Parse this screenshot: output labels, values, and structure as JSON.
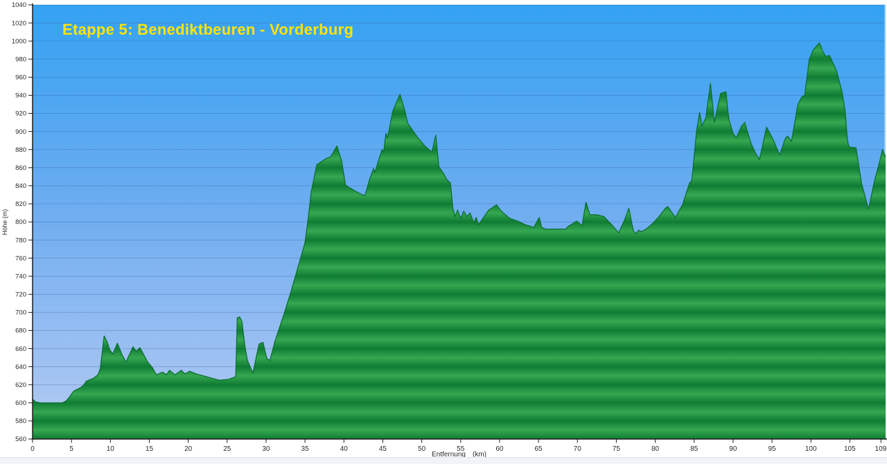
{
  "chart_data": {
    "type": "area",
    "title": "Etappe 5: Benediktbeuren - Vorderburg",
    "xlabel": "Entfernung",
    "xlabel_unit": "(km)",
    "ylabel": "Höhe (m)",
    "xlim": [
      0,
      109.6
    ],
    "ylim": [
      560,
      1040
    ],
    "grid": true,
    "x_ticks": [
      0,
      5,
      10,
      15,
      20,
      25,
      30,
      35,
      40,
      45,
      50,
      55,
      60,
      65,
      70,
      75,
      80,
      85,
      90,
      95,
      100,
      105,
      109
    ],
    "y_ticks": [
      560,
      580,
      600,
      620,
      640,
      660,
      680,
      700,
      720,
      740,
      760,
      780,
      800,
      820,
      840,
      860,
      880,
      900,
      920,
      940,
      960,
      980,
      1000,
      1020,
      1040
    ],
    "points": [
      [
        0,
        604
      ],
      [
        0.4,
        601
      ],
      [
        1,
        600
      ],
      [
        2,
        600
      ],
      [
        3,
        600
      ],
      [
        3.8,
        600
      ],
      [
        4.3,
        602
      ],
      [
        4.7,
        606
      ],
      [
        5.3,
        613
      ],
      [
        6.2,
        617
      ],
      [
        6.6,
        620
      ],
      [
        6.9,
        624
      ],
      [
        7.8,
        627
      ],
      [
        8.4,
        631
      ],
      [
        8.7,
        638
      ],
      [
        9.2,
        674
      ],
      [
        9.6,
        667
      ],
      [
        9.9,
        659
      ],
      [
        10.3,
        654
      ],
      [
        10.9,
        666
      ],
      [
        11.5,
        653
      ],
      [
        12,
        645
      ],
      [
        12.9,
        662
      ],
      [
        13.3,
        657
      ],
      [
        13.8,
        661
      ],
      [
        14.8,
        645
      ],
      [
        15.4,
        639
      ],
      [
        15.9,
        631
      ],
      [
        16.7,
        634
      ],
      [
        17.2,
        631
      ],
      [
        17.6,
        636
      ],
      [
        18.3,
        631
      ],
      [
        19.1,
        636
      ],
      [
        19.6,
        632
      ],
      [
        20.2,
        635
      ],
      [
        21,
        632
      ],
      [
        21.9,
        630
      ],
      [
        23.1,
        627
      ],
      [
        24,
        625
      ],
      [
        25.2,
        626
      ],
      [
        26.1,
        629
      ],
      [
        26.3,
        694
      ],
      [
        26.6,
        695
      ],
      [
        26.9,
        690
      ],
      [
        27.3,
        662
      ],
      [
        27.6,
        647
      ],
      [
        28.3,
        633
      ],
      [
        29.1,
        665
      ],
      [
        29.6,
        667
      ],
      [
        30.1,
        649
      ],
      [
        30.5,
        647
      ],
      [
        31.1,
        667
      ],
      [
        32.3,
        698
      ],
      [
        33.2,
        723
      ],
      [
        34.1,
        750
      ],
      [
        35,
        777
      ],
      [
        35.4,
        803
      ],
      [
        35.8,
        833
      ],
      [
        36.5,
        863
      ],
      [
        37,
        866
      ],
      [
        37.7,
        870
      ],
      [
        38.3,
        872
      ],
      [
        39.1,
        884
      ],
      [
        39.7,
        868
      ],
      [
        40.2,
        841
      ],
      [
        40.5,
        839
      ],
      [
        40.9,
        837
      ],
      [
        41.7,
        833
      ],
      [
        42.4,
        830
      ],
      [
        42.7,
        829
      ],
      [
        43.3,
        847
      ],
      [
        43.8,
        859
      ],
      [
        44,
        855
      ],
      [
        44.6,
        872
      ],
      [
        44.9,
        880
      ],
      [
        45.1,
        877
      ],
      [
        45.4,
        898
      ],
      [
        45.6,
        893
      ],
      [
        46.3,
        923
      ],
      [
        47.2,
        941
      ],
      [
        47.8,
        924
      ],
      [
        48.2,
        909
      ],
      [
        48.6,
        904
      ],
      [
        49.5,
        893
      ],
      [
        50.4,
        884
      ],
      [
        51.3,
        877
      ],
      [
        51.8,
        896
      ],
      [
        52.2,
        861
      ],
      [
        52.7,
        855
      ],
      [
        53.2,
        847
      ],
      [
        53.7,
        843
      ],
      [
        54,
        815
      ],
      [
        54.3,
        806
      ],
      [
        54.6,
        813
      ],
      [
        55,
        804
      ],
      [
        55.4,
        812
      ],
      [
        55.8,
        806
      ],
      [
        56.2,
        810
      ],
      [
        56.7,
        799
      ],
      [
        57,
        805
      ],
      [
        57.3,
        797
      ],
      [
        58.6,
        813
      ],
      [
        59.6,
        819
      ],
      [
        60.2,
        812
      ],
      [
        61.3,
        804
      ],
      [
        62.3,
        801
      ],
      [
        63.3,
        797
      ],
      [
        64.4,
        794
      ],
      [
        65.1,
        805
      ],
      [
        65.4,
        794
      ],
      [
        65.9,
        792
      ],
      [
        67.2,
        792
      ],
      [
        68.5,
        792
      ],
      [
        68.8,
        795
      ],
      [
        69.9,
        801
      ],
      [
        70.6,
        796
      ],
      [
        71.1,
        822
      ],
      [
        71.6,
        808
      ],
      [
        72.5,
        808
      ],
      [
        73.4,
        806
      ],
      [
        74.5,
        796
      ],
      [
        75.3,
        788
      ],
      [
        76.1,
        803
      ],
      [
        76.6,
        815
      ],
      [
        77.2,
        790
      ],
      [
        77.5,
        787
      ],
      [
        77.9,
        791
      ],
      [
        78.2,
        789
      ],
      [
        78.8,
        792
      ],
      [
        79.5,
        797
      ],
      [
        80.4,
        805
      ],
      [
        81.3,
        815
      ],
      [
        81.6,
        817
      ],
      [
        82.6,
        805
      ],
      [
        83.5,
        819
      ],
      [
        84.4,
        843
      ],
      [
        84.7,
        846
      ],
      [
        84.9,
        864
      ],
      [
        85.3,
        900
      ],
      [
        85.7,
        921
      ],
      [
        86,
        906
      ],
      [
        86.5,
        915
      ],
      [
        87.1,
        953
      ],
      [
        87.6,
        910
      ],
      [
        88.4,
        942
      ],
      [
        89.1,
        944
      ],
      [
        89.3,
        925
      ],
      [
        89.5,
        912
      ],
      [
        90,
        898
      ],
      [
        90.4,
        893
      ],
      [
        91.1,
        906
      ],
      [
        91.5,
        910
      ],
      [
        92.3,
        887
      ],
      [
        93,
        874
      ],
      [
        93.4,
        869
      ],
      [
        94.3,
        905
      ],
      [
        95.1,
        892
      ],
      [
        96,
        874
      ],
      [
        96.7,
        892
      ],
      [
        97,
        895
      ],
      [
        97.5,
        889
      ],
      [
        98.3,
        929
      ],
      [
        98.8,
        938
      ],
      [
        99.2,
        940
      ],
      [
        99.8,
        980
      ],
      [
        100.3,
        990
      ],
      [
        101.1,
        998
      ],
      [
        101.5,
        989
      ],
      [
        101.9,
        983
      ],
      [
        102.4,
        984
      ],
      [
        103.3,
        967
      ],
      [
        104,
        944
      ],
      [
        104.4,
        923
      ],
      [
        104.7,
        890
      ],
      [
        104.9,
        883
      ],
      [
        105.8,
        882
      ],
      [
        106.5,
        843
      ],
      [
        107.4,
        814
      ],
      [
        108.1,
        843
      ],
      [
        108.9,
        869
      ],
      [
        109.2,
        880
      ],
      [
        109.6,
        872
      ]
    ]
  },
  "colors": {
    "sky_top": "#34a2f2",
    "sky_mid": "#6fadf0",
    "sky_bottom": "#b6cbf3",
    "grid_line": "rgba(45,75,145,0.28)",
    "fill_dark": "#0f7c34",
    "fill_light": "#36a751",
    "outline": "#0a6b2b",
    "axis": "#1c1c1c",
    "tick_text": "#2a2a2a",
    "title": "#ffe405",
    "edge_highlight": "rgba(255,255,255,0.40)",
    "footer_bg": "#f0f3f7",
    "footer_border": "#dde3ea"
  }
}
